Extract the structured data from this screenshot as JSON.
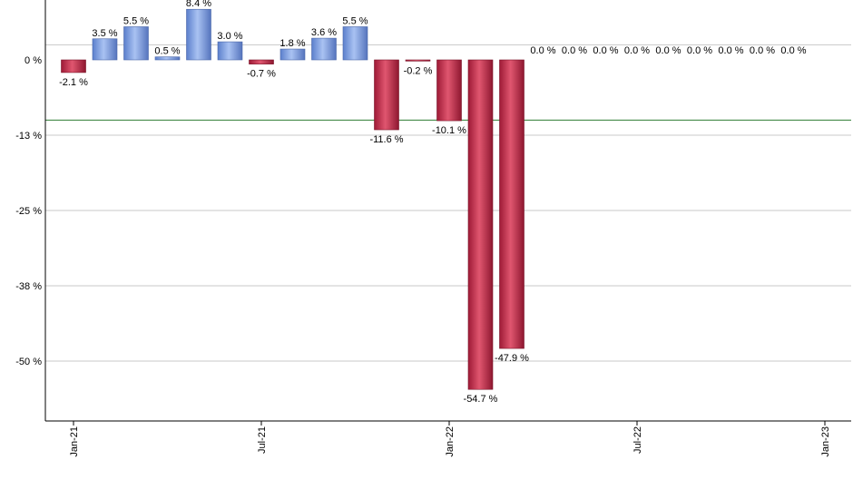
{
  "chart_data": {
    "type": "bar",
    "title": "",
    "xlabel": "",
    "ylabel": "",
    "ylim": [
      -60,
      10
    ],
    "y_ticks": [
      {
        "value": 0,
        "label": "0 %"
      },
      {
        "value": -12.5,
        "label": "-13 %"
      },
      {
        "value": -25,
        "label": "-25 %"
      },
      {
        "value": -37.5,
        "label": "-38 %"
      },
      {
        "value": -50,
        "label": "-50 %"
      }
    ],
    "x_ticks": [
      {
        "month_index": 0,
        "label": "Jan-21"
      },
      {
        "month_index": 6,
        "label": "Jul-21"
      },
      {
        "month_index": 12,
        "label": "Jan-22"
      },
      {
        "month_index": 18,
        "label": "Jul-22"
      },
      {
        "month_index": 24,
        "label": "Jan-23"
      }
    ],
    "reference_line": -10,
    "grid": true,
    "categories": [
      "2021-01",
      "2021-02",
      "2021-03",
      "2021-04",
      "2021-05",
      "2021-06",
      "2021-07",
      "2021-08",
      "2021-09",
      "2021-10",
      "2021-11",
      "2021-12",
      "2022-01",
      "2022-02",
      "2022-03",
      "2022-04",
      "2022-05",
      "2022-06",
      "2022-07",
      "2022-08",
      "2022-09",
      "2022-10",
      "2022-11",
      "2022-12"
    ],
    "values": [
      -2.1,
      3.5,
      5.5,
      0.5,
      8.4,
      3.0,
      -0.7,
      1.8,
      3.6,
      5.5,
      -11.6,
      -0.2,
      -10.1,
      -54.7,
      -47.9,
      0.0,
      0.0,
      0.0,
      0.0,
      0.0,
      0.0,
      0.0,
      0.0,
      0.0
    ],
    "labels": [
      "-2.1 %",
      "3.5 %",
      "5.5 %",
      "0.5 %",
      "8.4 %",
      "3.0 %",
      "-0.7 %",
      "1.8 %",
      "3.6 %",
      "5.5 %",
      "-11.6 %",
      "-0.2 %",
      "-10.1 %",
      "-54.7 %",
      "-47.9 %",
      "0.0 %",
      "0.0 %",
      "0.0 %",
      "0.0 %",
      "0.0 %",
      "0.0 %",
      "0.0 %",
      "0.0 %",
      "0.0 %"
    ],
    "colors": {
      "positive": "#7f9fe3",
      "negative": "#c8334f",
      "reference_line": "#2e7d32",
      "grid": "#c8c8c8",
      "axis": "#000000"
    }
  }
}
